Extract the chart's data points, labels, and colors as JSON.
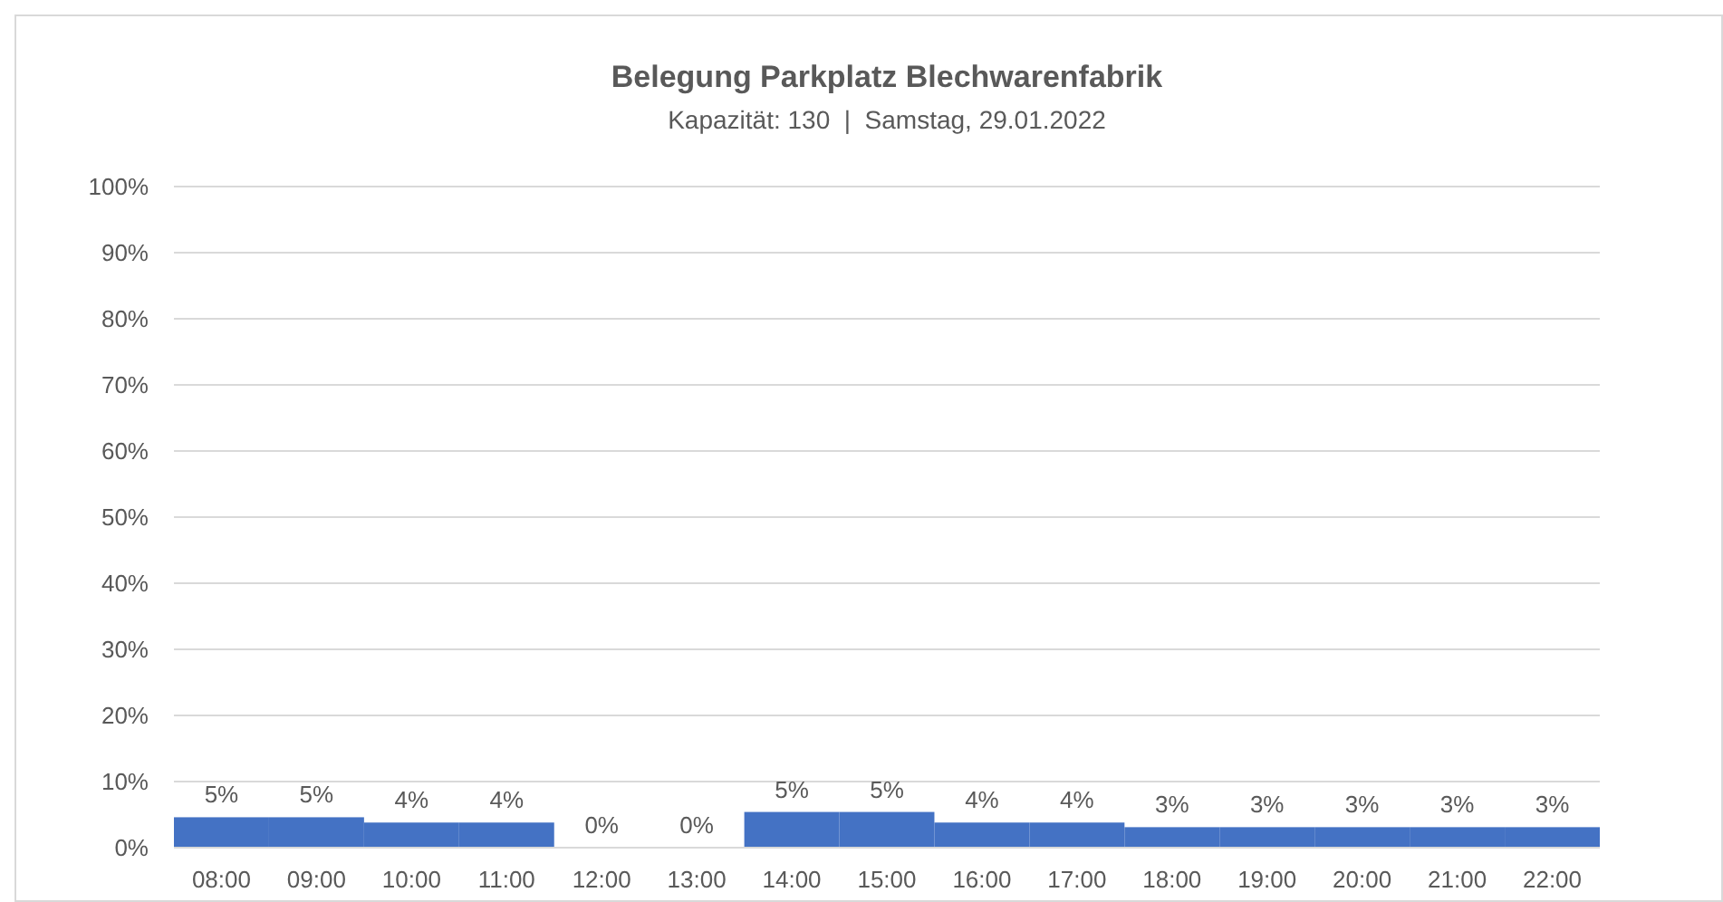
{
  "chart_data": {
    "type": "bar",
    "title": "Belegung Parkplatz Blechwarenfabrik",
    "subtitle": "Kapazität: 130  |  Samstag, 29.01.2022",
    "categories": [
      "08:00",
      "09:00",
      "10:00",
      "11:00",
      "12:00",
      "13:00",
      "14:00",
      "15:00",
      "16:00",
      "17:00",
      "18:00",
      "19:00",
      "20:00",
      "21:00",
      "22:00"
    ],
    "values": [
      4.6,
      4.6,
      3.8,
      3.8,
      0,
      0,
      5.4,
      5.4,
      3.8,
      3.8,
      3.1,
      3.1,
      3.1,
      3.1,
      3.1
    ],
    "value_labels": [
      "5%",
      "5%",
      "4%",
      "4%",
      "0%",
      "0%",
      "5%",
      "5%",
      "4%",
      "4%",
      "3%",
      "3%",
      "3%",
      "3%",
      "3%"
    ],
    "color": "#4472c4",
    "ylim": [
      0,
      100
    ],
    "yticks": [
      {
        "value": 0,
        "label": "0%"
      },
      {
        "value": 10,
        "label": "10%"
      },
      {
        "value": 20,
        "label": "20%"
      },
      {
        "value": 30,
        "label": "30%"
      },
      {
        "value": 40,
        "label": "40%"
      },
      {
        "value": 50,
        "label": "50%"
      },
      {
        "value": 60,
        "label": "60%"
      },
      {
        "value": 70,
        "label": "70%"
      },
      {
        "value": 80,
        "label": "80%"
      },
      {
        "value": 90,
        "label": "90%"
      },
      {
        "value": 100,
        "label": "100%"
      }
    ],
    "grid": "y"
  }
}
